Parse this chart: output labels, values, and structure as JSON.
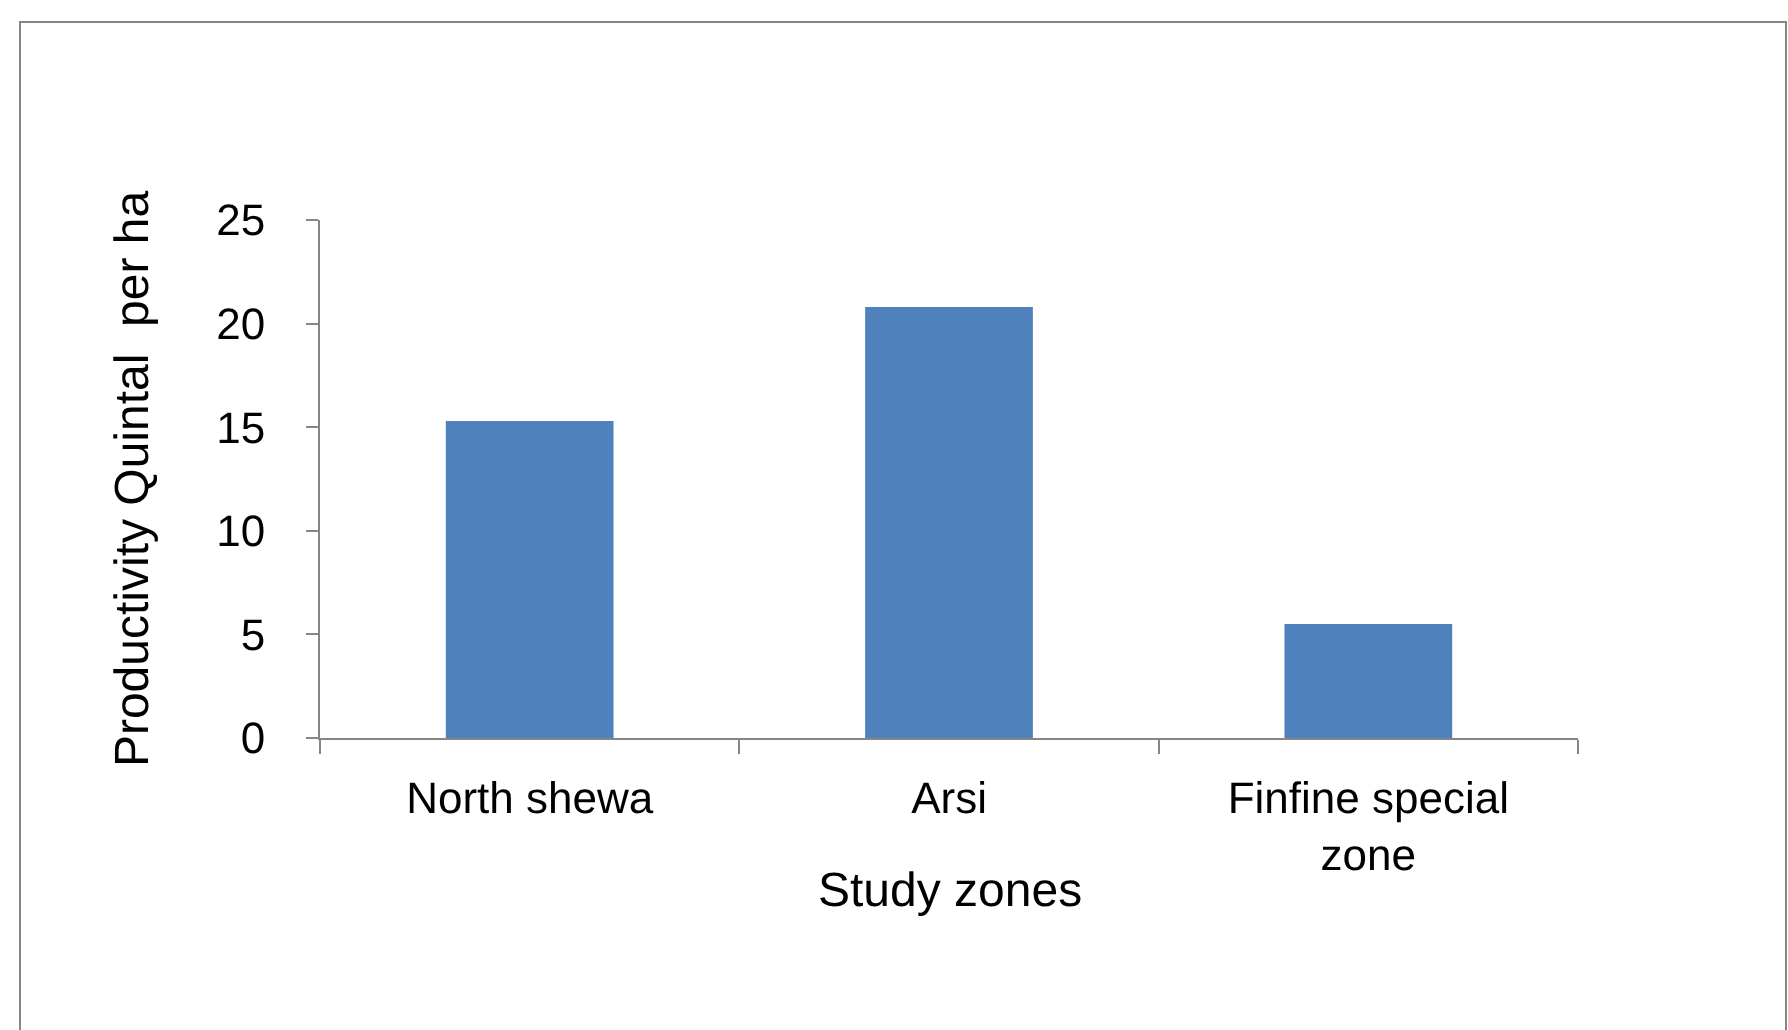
{
  "chart_data": {
    "type": "bar",
    "xlabel": "Study zones",
    "ylabel": "Productivity Quintal  per ha",
    "categories": [
      "North shewa",
      "Arsi",
      "Finfine special zone"
    ],
    "values": [
      15.3,
      20.8,
      5.5
    ],
    "color": "#4f81bd",
    "ylim": [
      0,
      25
    ],
    "yticks": [
      0,
      5,
      10,
      15,
      20,
      25
    ],
    "grid": false,
    "legend": false
  }
}
